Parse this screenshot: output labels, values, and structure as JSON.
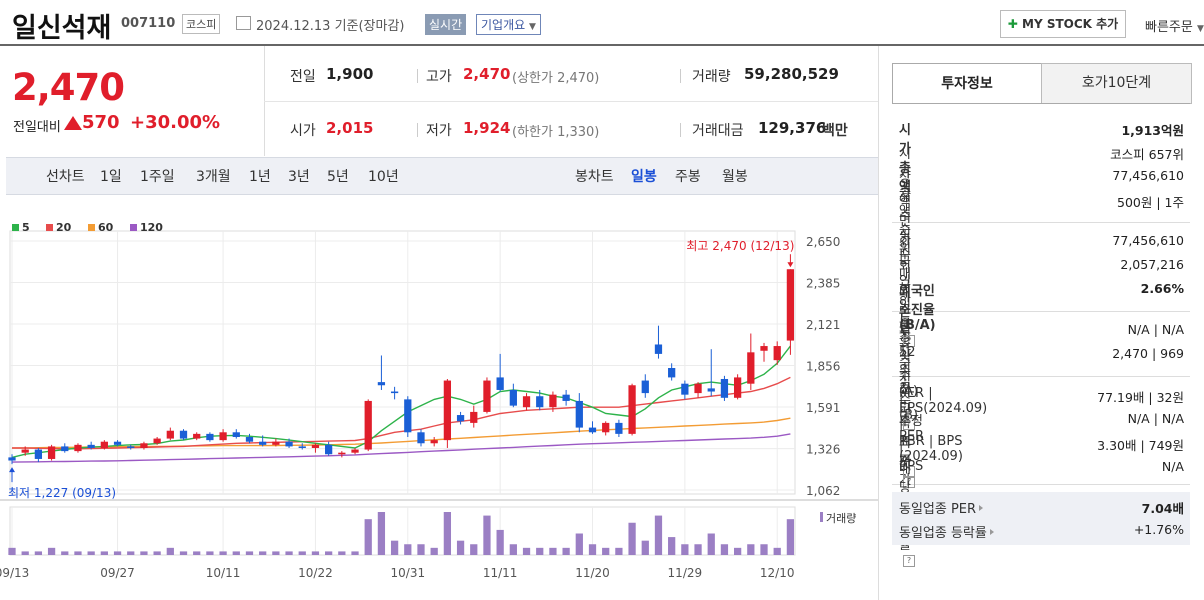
{
  "header": {
    "name": "일신석재",
    "code": "007110",
    "market": "코스피",
    "date": "2024.12.13 기준(장마감)",
    "realtime": "실시간",
    "overview": "기업개요",
    "mystock": "MY STOCK 추가",
    "quick": "빠른주문"
  },
  "quote": {
    "price": "2,470",
    "change_label": "전일대비",
    "change": "570",
    "change_rate": "+30.00%",
    "prev_label": "전일",
    "prev": "1,900",
    "high_label": "고가",
    "high": "2,470",
    "high_limit": "(상한가 2,470)",
    "volume_label": "거래량",
    "volume": "59,280,529",
    "open_label": "시가",
    "open": "2,015",
    "low_label": "저가",
    "low": "1,924",
    "low_limit": "(하한가 1,330)",
    "amount_label": "거래대금",
    "amount": "129,376",
    "amount_unit": "백만"
  },
  "period": {
    "line_label": "선차트",
    "line_items": [
      "1일",
      "1주일",
      "3개월",
      "1년",
      "3년",
      "5년",
      "10년"
    ],
    "candle_label": "봉차트",
    "candle_items": [
      "일봉",
      "주봉",
      "월봉"
    ],
    "candle_selected": "일봉"
  },
  "chart_data": {
    "type": "candlestick",
    "legend": [
      {
        "name": "5",
        "color": "#2db34a"
      },
      {
        "name": "20",
        "color": "#e74c4c"
      },
      {
        "name": "60",
        "color": "#f39c34"
      },
      {
        "name": "120",
        "color": "#9b59c4"
      }
    ],
    "y_ticks": [
      "2,650",
      "2,385",
      "2,121",
      "1,856",
      "1,591",
      "1,326",
      "1,062"
    ],
    "ylim": [
      1062,
      2650
    ],
    "x_ticks": [
      "09/13",
      "09/27",
      "10/11",
      "10/22",
      "10/31",
      "11/11",
      "11/20",
      "11/29",
      "12/10"
    ],
    "x_tick_index": [
      0,
      8,
      16,
      23,
      30,
      37,
      44,
      51,
      58
    ],
    "max_label": "최고 2,470 (12/13)",
    "min_label": "최저 1,227 (09/13)",
    "volume_label": "거래량",
    "up_color": "#e01e2b",
    "down_color": "#1a5fd6",
    "ohlc": [
      [
        1270,
        1290,
        1227,
        1250
      ],
      [
        1300,
        1340,
        1280,
        1320
      ],
      [
        1320,
        1330,
        1240,
        1260
      ],
      [
        1260,
        1350,
        1250,
        1340
      ],
      [
        1340,
        1360,
        1300,
        1310
      ],
      [
        1310,
        1360,
        1300,
        1350
      ],
      [
        1350,
        1370,
        1320,
        1330
      ],
      [
        1330,
        1380,
        1320,
        1370
      ],
      [
        1370,
        1380,
        1340,
        1350
      ],
      [
        1340,
        1350,
        1320,
        1330
      ],
      [
        1330,
        1370,
        1320,
        1360
      ],
      [
        1360,
        1400,
        1350,
        1390
      ],
      [
        1390,
        1460,
        1380,
        1440
      ],
      [
        1440,
        1450,
        1380,
        1390
      ],
      [
        1390,
        1430,
        1380,
        1420
      ],
      [
        1420,
        1430,
        1370,
        1380
      ],
      [
        1380,
        1450,
        1370,
        1430
      ],
      [
        1430,
        1450,
        1390,
        1400
      ],
      [
        1400,
        1420,
        1360,
        1370
      ],
      [
        1370,
        1410,
        1340,
        1350
      ],
      [
        1350,
        1390,
        1340,
        1370
      ],
      [
        1370,
        1390,
        1330,
        1340
      ],
      [
        1340,
        1360,
        1320,
        1330
      ],
      [
        1330,
        1360,
        1300,
        1350
      ],
      [
        1350,
        1370,
        1280,
        1290
      ],
      [
        1290,
        1310,
        1270,
        1300
      ],
      [
        1300,
        1330,
        1290,
        1320
      ],
      [
        1320,
        1640,
        1310,
        1630
      ],
      [
        1750,
        1920,
        1700,
        1730
      ],
      [
        1690,
        1720,
        1640,
        1680
      ],
      [
        1640,
        1660,
        1400,
        1430
      ],
      [
        1430,
        1450,
        1340,
        1360
      ],
      [
        1360,
        1400,
        1340,
        1380
      ],
      [
        1380,
        1770,
        1330,
        1760
      ],
      [
        1540,
        1560,
        1480,
        1500
      ],
      [
        1490,
        1600,
        1460,
        1560
      ],
      [
        1560,
        1780,
        1550,
        1760
      ],
      [
        1780,
        1930,
        1690,
        1700
      ],
      [
        1700,
        1740,
        1590,
        1600
      ],
      [
        1590,
        1680,
        1570,
        1660
      ],
      [
        1660,
        1700,
        1570,
        1590
      ],
      [
        1590,
        1690,
        1560,
        1670
      ],
      [
        1670,
        1700,
        1600,
        1630
      ],
      [
        1630,
        1680,
        1430,
        1460
      ],
      [
        1460,
        1500,
        1420,
        1430
      ],
      [
        1430,
        1500,
        1410,
        1490
      ],
      [
        1490,
        1510,
        1400,
        1420
      ],
      [
        1420,
        1740,
        1410,
        1730
      ],
      [
        1760,
        1800,
        1650,
        1680
      ],
      [
        1990,
        2110,
        1900,
        1930
      ],
      [
        1840,
        1870,
        1760,
        1780
      ],
      [
        1740,
        1760,
        1640,
        1670
      ],
      [
        1680,
        1750,
        1650,
        1740
      ],
      [
        1710,
        1960,
        1660,
        1690
      ],
      [
        1770,
        1790,
        1630,
        1650
      ],
      [
        1650,
        1800,
        1640,
        1780
      ],
      [
        1740,
        2060,
        1700,
        1940
      ],
      [
        1950,
        2000,
        1880,
        1980
      ],
      [
        1890,
        2010,
        1860,
        1980
      ],
      [
        2015,
        2470,
        1924,
        2470
      ]
    ],
    "ma5": [
      1270,
      1290,
      1300,
      1310,
      1320,
      1330,
      1335,
      1340,
      1345,
      1350,
      1352,
      1358,
      1374,
      1381,
      1395,
      1405,
      1408,
      1410,
      1405,
      1398,
      1390,
      1380,
      1370,
      1360,
      1350,
      1340,
      1330,
      1370,
      1440,
      1500,
      1560,
      1600,
      1640,
      1660,
      1640,
      1610,
      1640,
      1690,
      1700,
      1690,
      1680,
      1660,
      1650,
      1620,
      1590,
      1550,
      1540,
      1530,
      1580,
      1650,
      1700,
      1720,
      1740,
      1750,
      1740,
      1730,
      1760,
      1800,
      1870,
      1980
    ],
    "ma20": [
      1330,
      1330,
      1328,
      1326,
      1325,
      1325,
      1326,
      1328,
      1330,
      1332,
      1334,
      1336,
      1338,
      1340,
      1345,
      1350,
      1355,
      1360,
      1362,
      1364,
      1366,
      1368,
      1370,
      1372,
      1374,
      1376,
      1378,
      1390,
      1410,
      1430,
      1440,
      1450,
      1470,
      1490,
      1500,
      1510,
      1530,
      1550,
      1560,
      1570,
      1575,
      1580,
      1585,
      1590,
      1590,
      1590,
      1590,
      1600,
      1610,
      1620,
      1630,
      1640,
      1650,
      1660,
      1670,
      1680,
      1690,
      1710,
      1740,
      1780
    ],
    "ma60": [
      1330,
      1330,
      1332,
      1333,
      1334,
      1335,
      1336,
      1337,
      1338,
      1339,
      1340,
      1340,
      1341,
      1342,
      1343,
      1344,
      1345,
      1345,
      1345,
      1345,
      1346,
      1347,
      1348,
      1349,
      1350,
      1352,
      1354,
      1358,
      1362,
      1367,
      1372,
      1377,
      1382,
      1387,
      1392,
      1397,
      1402,
      1407,
      1412,
      1417,
      1422,
      1427,
      1432,
      1437,
      1442,
      1446,
      1450,
      1454,
      1458,
      1462,
      1466,
      1470,
      1474,
      1478,
      1482,
      1486,
      1490,
      1495,
      1505,
      1520
    ],
    "ma120": [
      1240,
      1241,
      1242,
      1243,
      1244,
      1245,
      1246,
      1247,
      1248,
      1250,
      1252,
      1254,
      1256,
      1258,
      1260,
      1262,
      1264,
      1266,
      1268,
      1270,
      1272,
      1274,
      1276,
      1278,
      1280,
      1283,
      1286,
      1290,
      1294,
      1298,
      1302,
      1306,
      1310,
      1314,
      1318,
      1322,
      1326,
      1330,
      1334,
      1338,
      1342,
      1346,
      1350,
      1354,
      1357,
      1360,
      1363,
      1366,
      1369,
      1372,
      1375,
      1378,
      1381,
      1384,
      1387,
      1390,
      1393,
      1398,
      1405,
      1420
    ],
    "volume": [
      2,
      1,
      1,
      2,
      1,
      1,
      1,
      1,
      1,
      1,
      1,
      1,
      2,
      1,
      1,
      1,
      1,
      1,
      1,
      1,
      1,
      1,
      1,
      1,
      1,
      1,
      1,
      10,
      12,
      4,
      3,
      3,
      2,
      12,
      4,
      3,
      11,
      7,
      3,
      2,
      2,
      2,
      2,
      6,
      3,
      2,
      2,
      9,
      4,
      11,
      5,
      3,
      3,
      6,
      3,
      2,
      3,
      3,
      2,
      10
    ]
  },
  "invest": {
    "tab1": "투자정보",
    "tab2": "호가10단계",
    "rows": [
      {
        "label": "시가총액",
        "value": "1,913억원",
        "bold": true
      },
      {
        "label": "시가총액순위",
        "value": "코스피 657위",
        "arrow": true
      },
      {
        "label": "상장주식수",
        "value": "77,456,610"
      },
      {
        "label": "액면가 | 매매단위",
        "value": "500원 | 1주"
      },
      {
        "label": "외국인한도주식수(A)",
        "value": "77,456,610"
      },
      {
        "label": "외국인보유주식수(B)",
        "value": "2,057,216"
      },
      {
        "label": "외국인소진율(B/A)",
        "value": "2.66%",
        "bold": true,
        "q": true
      },
      {
        "label": "투자의견 | 목표주가",
        "value": "N/A | N/A"
      },
      {
        "label": "52주최고 | 최저",
        "value": "2,470 | 969"
      },
      {
        "label": "PER | EPS(2024.09)",
        "value": "77.19배 | 32원",
        "q": true
      },
      {
        "label": "추정PER | EPS",
        "value": "N/A | N/A",
        "q": true
      },
      {
        "label": "PBR | BPS (2024.09)",
        "value": "3.30배 | 749원",
        "q": true
      },
      {
        "label": "배당수익률",
        "value": "N/A",
        "q": true
      }
    ],
    "peer_per_label": "동일업종 PER",
    "peer_per": "7.04배",
    "peer_rate_label": "동일업종 등락률",
    "peer_rate": "+1.76%"
  }
}
